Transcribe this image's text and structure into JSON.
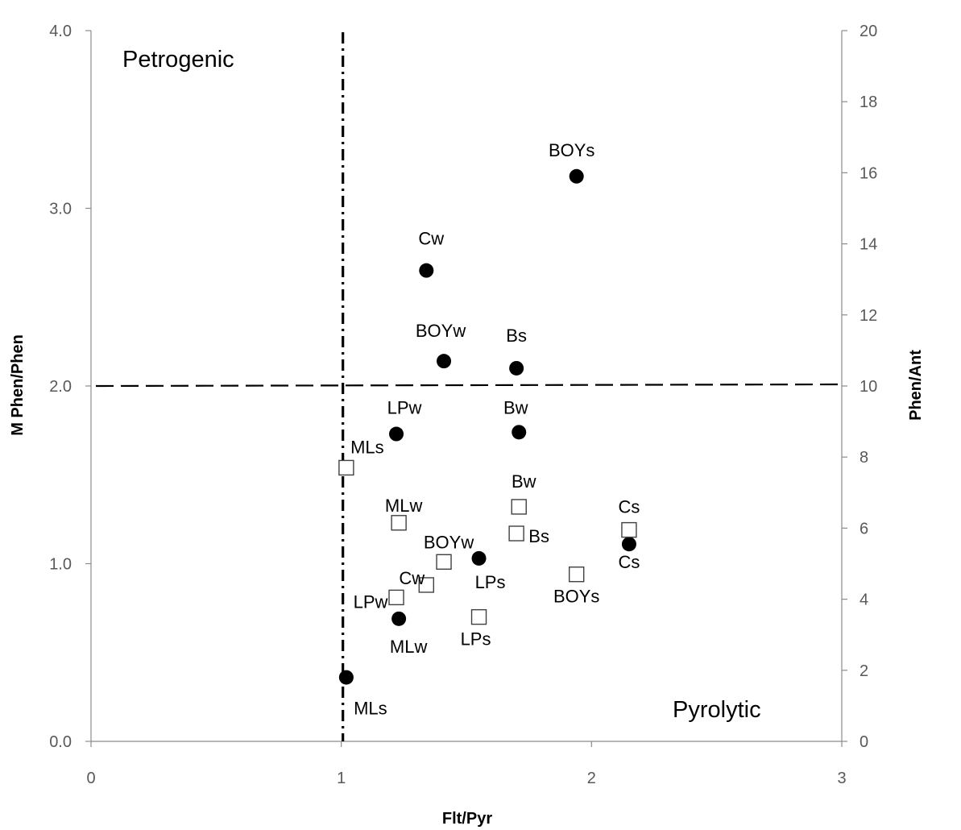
{
  "chart_data": {
    "type": "scatter",
    "title": "",
    "xlabel": "Flt/Pyr",
    "ylabel": "M Phen/Phen",
    "y2label": "Phen/Ant",
    "xlim": [
      0,
      3
    ],
    "ylim": [
      0,
      4
    ],
    "y2lim": [
      0,
      20
    ],
    "x_ticks": [
      "0",
      "1",
      "2",
      "3"
    ],
    "y_ticks": [
      "0.0",
      "1.0",
      "2.0",
      "3.0",
      "4.0"
    ],
    "y2_ticks": [
      "0",
      "2",
      "4",
      "6",
      "8",
      "10",
      "12",
      "14",
      "16",
      "18",
      "20"
    ],
    "grid": false,
    "region_labels": {
      "top_left": "Petrogenic",
      "bottom_right": "Pyrolytic"
    },
    "threshold_lines": {
      "vertical_x": 1.0,
      "horizontal_y": 2.0
    },
    "series": [
      {
        "marker": "filled-circle",
        "axis": "left",
        "points": [
          {
            "label": "BOYs",
            "x": 1.94,
            "y": 3.18
          },
          {
            "label": "Cw",
            "x": 1.34,
            "y": 2.65
          },
          {
            "label": "BOYw",
            "x": 1.41,
            "y": 2.14
          },
          {
            "label": "Bs",
            "x": 1.7,
            "y": 2.1
          },
          {
            "label": "LPw",
            "x": 1.22,
            "y": 1.73
          },
          {
            "label": "Bw",
            "x": 1.71,
            "y": 1.74
          },
          {
            "label": "Cs",
            "x": 2.15,
            "y": 1.11
          },
          {
            "label": "LPs",
            "x": 1.55,
            "y": 1.03
          },
          {
            "label": "MLw",
            "x": 1.23,
            "y": 0.69
          },
          {
            "label": "MLs",
            "x": 1.02,
            "y": 0.36
          }
        ]
      },
      {
        "marker": "open-square",
        "axis": "right",
        "points": [
          {
            "label": "MLs",
            "x": 1.02,
            "y": 7.7
          },
          {
            "label": "MLw",
            "x": 1.23,
            "y": 6.15
          },
          {
            "label": "Bw",
            "x": 1.71,
            "y": 6.6
          },
          {
            "label": "Bs",
            "x": 1.7,
            "y": 5.85
          },
          {
            "label": "Cs",
            "x": 2.15,
            "y": 5.95
          },
          {
            "label": "BOYw",
            "x": 1.41,
            "y": 5.05
          },
          {
            "label": "Cw",
            "x": 1.34,
            "y": 4.4
          },
          {
            "label": "BOYs",
            "x": 1.94,
            "y": 4.7
          },
          {
            "label": "LPw",
            "x": 1.22,
            "y": 4.05
          },
          {
            "label": "LPs",
            "x": 1.55,
            "y": 3.5
          }
        ]
      }
    ]
  }
}
